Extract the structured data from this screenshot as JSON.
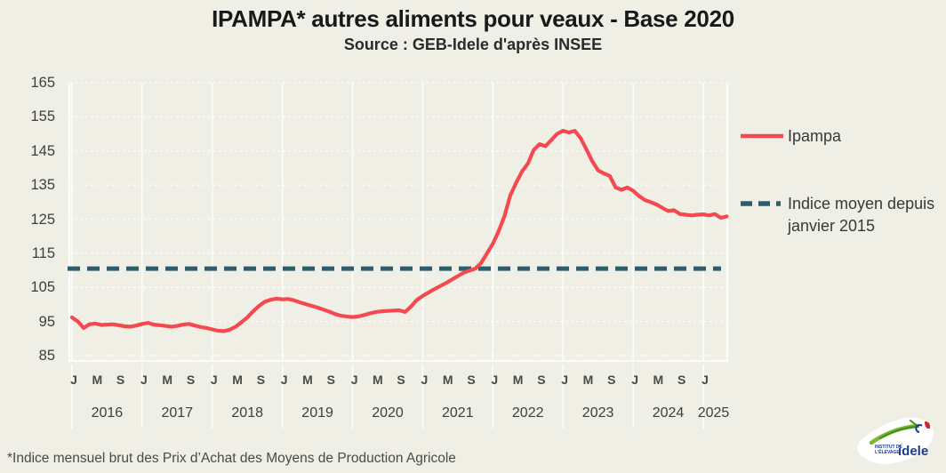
{
  "header": {
    "title": "IPAMPA* autres aliments pour veaux - Base 2020",
    "subtitle": "Source : GEB-Idele d'après INSEE"
  },
  "footnote": "*Indice mensuel brut des Prix d’Achat des Moyens de Production Agricole",
  "legend": {
    "ipampa_label": "Ipampa",
    "mean_label_line1": "Indice moyen depuis",
    "mean_label_line2": "janvier 2015"
  },
  "logo": {
    "org_line1": "INSTITUT DE",
    "org_line2": "L'ÉLEVAGE",
    "brand": "idele"
  },
  "colors": {
    "background": "#f0efe6",
    "ipampa": "#f4494f",
    "mean_line": "#2e5d6e",
    "grid": "#ffffff",
    "tick_text": "#3e3e3e"
  },
  "chart_data": {
    "type": "line",
    "title": "IPAMPA* autres aliments pour veaux - Base 2020",
    "subtitle": "Source : GEB-Idele d'après INSEE",
    "x_unit": "month",
    "x_start": "2016-01",
    "x_end": "2025-05",
    "ylim": [
      85,
      165
    ],
    "y_ticks": [
      165,
      155,
      145,
      135,
      125,
      115,
      105,
      95,
      85
    ],
    "grid": true,
    "legend_position": "right",
    "years": [
      2016,
      2017,
      2018,
      2019,
      2020,
      2021,
      2022,
      2023,
      2024,
      2025
    ],
    "month_tick_letters": [
      "J",
      "M",
      "S"
    ],
    "month_tick_positions": [
      0,
      4,
      8
    ],
    "series": [
      {
        "name": "Ipampa",
        "type": "line",
        "style": "solid",
        "color": "#f4494f",
        "monthly_values": [
          96.2,
          95.0,
          93.1,
          94.2,
          94.4,
          94.0,
          94.1,
          94.2,
          93.9,
          93.6,
          93.5,
          93.8,
          94.3,
          94.6,
          94.1,
          93.9,
          93.7,
          93.5,
          93.7,
          94.1,
          94.3,
          93.8,
          93.4,
          93.1,
          92.7,
          92.3,
          92.2,
          92.6,
          93.5,
          94.8,
          96.2,
          98.0,
          99.6,
          100.8,
          101.4,
          101.7,
          101.5,
          101.6,
          101.2,
          100.6,
          100.1,
          99.6,
          99.1,
          98.5,
          97.9,
          97.2,
          96.7,
          96.5,
          96.3,
          96.5,
          96.9,
          97.4,
          97.8,
          98.0,
          98.1,
          98.2,
          98.3,
          97.8,
          99.4,
          101.3,
          102.5,
          103.5,
          104.5,
          105.4,
          106.3,
          107.3,
          108.3,
          109.3,
          109.9,
          110.5,
          112.2,
          115.0,
          117.8,
          121.5,
          126.0,
          132.0,
          135.7,
          139.0,
          141.3,
          145.3,
          147.0,
          146.4,
          148.2,
          150.0,
          150.9,
          150.4,
          150.9,
          148.8,
          145.5,
          142.0,
          139.3,
          138.4,
          137.7,
          134.3,
          133.6,
          134.3,
          133.3,
          131.8,
          130.6,
          130.0,
          129.3,
          128.3,
          127.4,
          127.6,
          126.5,
          126.3,
          126.1,
          126.3,
          126.4,
          126.1,
          126.5,
          125.4,
          125.8
        ]
      },
      {
        "name": "Indice moyen depuis janvier 2015",
        "type": "horizontal-line",
        "style": "dashed",
        "color": "#2e5d6e",
        "value": 110.5
      }
    ]
  }
}
